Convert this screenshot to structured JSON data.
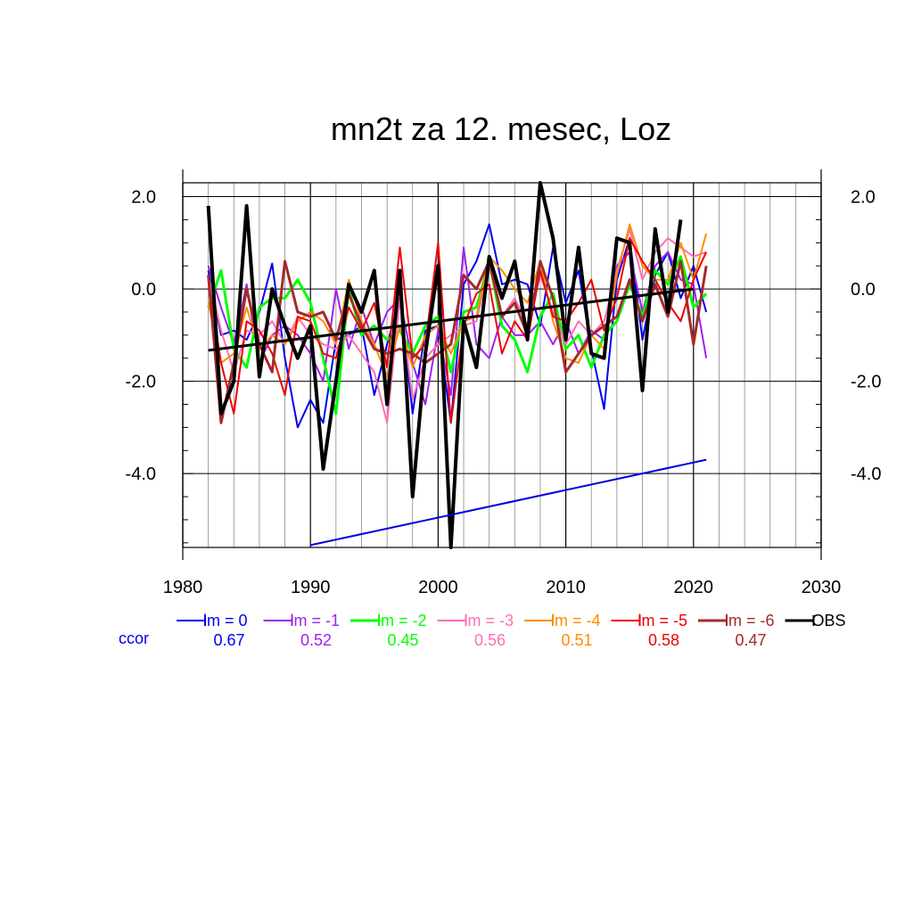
{
  "chart_data": {
    "type": "line",
    "title": "mn2t za 12. mesec, Loz",
    "xlim": [
      1980,
      2030
    ],
    "ylim": [
      -5.6,
      2.3
    ],
    "x_ticks": [
      "1980",
      "1990",
      "2000",
      "2010",
      "2020",
      "2030"
    ],
    "y_ticks": [
      "2.0",
      "0.0",
      "-2.0",
      "-4.0"
    ],
    "y_tick_values": [
      2.0,
      0.0,
      -2.0,
      -4.0
    ],
    "grid": true,
    "legend_placement": "bottom",
    "ccor_label": "ccor",
    "x": [
      1982,
      1983,
      1984,
      1985,
      1986,
      1987,
      1988,
      1989,
      1990,
      1991,
      1992,
      1993,
      1994,
      1995,
      1996,
      1997,
      1998,
      1999,
      2000,
      2001,
      2002,
      2003,
      2004,
      2005,
      2006,
      2007,
      2008,
      2009,
      2010,
      2011,
      2012,
      2013,
      2014,
      2015,
      2016,
      2017,
      2018,
      2019,
      2020,
      2021
    ],
    "series": [
      {
        "name": "lm = 0",
        "ccor": "0.67",
        "color": "#0000ee",
        "width": 2,
        "values": [
          0.4,
          -1.0,
          -0.9,
          -1.1,
          -0.5,
          0.55,
          -1.5,
          -3.0,
          -2.4,
          -2.9,
          -1.1,
          -1.0,
          -0.8,
          -2.3,
          -1.2,
          -0.2,
          -2.7,
          -0.9,
          -0.8,
          -2.9,
          0.1,
          0.6,
          1.4,
          0.1,
          0.2,
          0.1,
          -0.8,
          0.9,
          -0.3,
          0.4,
          -1.3,
          -2.6,
          0.2,
          1.1,
          -1.1,
          0.3,
          0.8,
          -0.2,
          0.5,
          -0.5
        ]
      },
      {
        "name": "lm = -1",
        "ccor": "0.52",
        "color": "#a020f0",
        "width": 2,
        "values": [
          0.5,
          -0.4,
          -1.2,
          0.1,
          -1.6,
          -1.0,
          -0.8,
          -1.0,
          -1.4,
          -2.0,
          0.0,
          -1.3,
          -0.4,
          -1.2,
          -0.5,
          -0.2,
          -1.6,
          -2.5,
          -0.9,
          -2.3,
          0.9,
          -1.2,
          -1.5,
          -0.6,
          -1.0,
          -1.0,
          -0.7,
          -1.2,
          -0.7,
          -1.4,
          -0.9,
          -1.1,
          0.5,
          0.8,
          -0.5,
          0.5,
          0.8,
          0.2,
          0.1,
          -1.5
        ]
      },
      {
        "name": "lm = -2",
        "ccor": "0.45",
        "color": "#00ff00",
        "width": 3,
        "values": [
          -0.4,
          0.4,
          -1.3,
          -1.7,
          -0.4,
          -0.2,
          -0.2,
          0.2,
          -0.3,
          -1.5,
          -2.7,
          0.0,
          -1.0,
          -0.8,
          -1.1,
          -0.9,
          -1.4,
          -0.8,
          -0.6,
          -1.8,
          -0.5,
          -0.4,
          0.6,
          -0.8,
          -1.1,
          -1.8,
          -0.6,
          -0.1,
          -1.3,
          -1.0,
          -1.7,
          -1.0,
          -0.7,
          0.1,
          -0.6,
          0.4,
          0.1,
          0.7,
          -0.4,
          -0.1
        ]
      },
      {
        "name": "lm = -3",
        "ccor": "0.56",
        "color": "#ff6eb4",
        "width": 2,
        "values": [
          0.3,
          -0.9,
          -1.8,
          -0.9,
          -1.0,
          -0.7,
          -1.2,
          -0.6,
          -1.0,
          -1.2,
          -1.3,
          -1.0,
          -1.4,
          -1.8,
          -2.9,
          -0.2,
          -2.4,
          -1.5,
          -1.2,
          -1.0,
          -0.8,
          -0.7,
          0.5,
          -0.6,
          -0.2,
          -0.8,
          0.3,
          -0.5,
          -1.2,
          -0.7,
          -1.0,
          -0.7,
          0.4,
          1.3,
          0.2,
          0.8,
          1.1,
          0.9,
          0.7,
          0.8
        ]
      },
      {
        "name": "lm = -4",
        "ccor": "0.51",
        "color": "#ff8c00",
        "width": 2,
        "values": [
          -0.3,
          -1.6,
          -1.4,
          -0.4,
          -1.3,
          -1.0,
          -1.2,
          -0.7,
          -0.5,
          -0.7,
          -1.2,
          0.2,
          -0.7,
          -1.2,
          -1.9,
          -0.8,
          -1.7,
          -1.0,
          -0.8,
          -1.4,
          -0.7,
          -0.6,
          0.7,
          0.4,
          0.0,
          -0.3,
          0.6,
          -0.7,
          -1.5,
          -1.6,
          -1.0,
          -1.3,
          0.3,
          1.4,
          0.5,
          0.2,
          0.2,
          1.0,
          0.2,
          1.2
        ]
      },
      {
        "name": "lm = -5",
        "ccor": "0.58",
        "color": "#ee0000",
        "width": 2,
        "values": [
          0.2,
          -1.6,
          -2.7,
          -0.7,
          -0.9,
          -1.4,
          -2.3,
          -0.6,
          -0.7,
          -1.4,
          -1.5,
          -0.4,
          -0.9,
          -0.3,
          -1.7,
          0.9,
          -1.5,
          -1.2,
          1.0,
          -2.9,
          -0.8,
          -0.1,
          0.1,
          -1.4,
          -0.7,
          -1.1,
          0.4,
          -0.6,
          -0.7,
          -0.3,
          0.2,
          -0.9,
          -0.2,
          1.1,
          0.6,
          0.2,
          -0.3,
          -0.7,
          0.2,
          0.8
        ]
      },
      {
        "name": "lm = -6",
        "ccor": "0.47",
        "color": "#a52a2a",
        "width": 3,
        "values": [
          0.3,
          -2.9,
          -1.6,
          0.0,
          -1.2,
          -1.8,
          0.6,
          -0.5,
          -0.6,
          -0.5,
          -1.1,
          -0.1,
          -0.8,
          -1.3,
          -1.4,
          -1.3,
          -1.4,
          -1.6,
          -1.4,
          -1.2,
          0.3,
          0.0,
          0.6,
          -0.6,
          -0.3,
          -1.0,
          0.6,
          -0.2,
          -1.8,
          -1.4,
          -1.0,
          -0.8,
          -0.6,
          0.2,
          -0.7,
          0.1,
          -0.6,
          0.6,
          -1.2,
          0.5
        ]
      },
      {
        "name": "OBS",
        "ccor": "",
        "color": "#000000",
        "width": 4,
        "values": [
          1.8,
          -2.7,
          -2.0,
          1.8,
          -1.9,
          0.0,
          -0.8,
          -1.5,
          -0.8,
          -3.9,
          -2.0,
          0.1,
          -0.5,
          0.4,
          -2.5,
          0.4,
          -4.5,
          -1.4,
          0.5,
          -5.6,
          -0.7,
          -1.7,
          0.7,
          -0.2,
          0.6,
          -1.1,
          2.3,
          1.1,
          -1.1,
          0.9,
          -1.4,
          -1.5,
          1.1,
          1.0,
          -2.2,
          1.3,
          -0.5,
          1.5,
          null,
          null
        ]
      }
    ],
    "trend_lines": [
      {
        "name": "obs-trend",
        "color": "#000000",
        "width": 3,
        "x": [
          1982,
          2020
        ],
        "y": [
          -1.33,
          0.0
        ]
      },
      {
        "name": "model-trend",
        "color": "#0000dd",
        "width": 2,
        "x": [
          1990,
          2021
        ],
        "y": [
          -5.55,
          -3.7
        ]
      }
    ]
  }
}
